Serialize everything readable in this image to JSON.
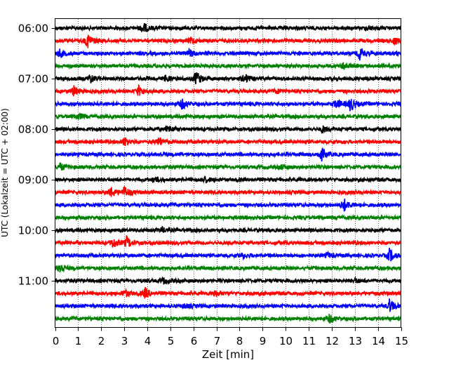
{
  "chart_data": {
    "type": "line",
    "chart_kind": "helicorder seismogram",
    "title": "",
    "xlabel": "Zeit  [min]",
    "ylabel": "UTC (Lokalzeit = UTC + 02:00)",
    "xlim": [
      0,
      15
    ],
    "x_ticks": [
      "0",
      "1",
      "2",
      "3",
      "4",
      "5",
      "6",
      "7",
      "8",
      "9",
      "10",
      "11",
      "12",
      "13",
      "14",
      "15"
    ],
    "y_ticks": [
      "06:00",
      "07:00",
      "08:00",
      "09:00",
      "10:00",
      "11:00"
    ],
    "grid": "vertical dotted lines at every minute",
    "trace_start_time": "06:00",
    "trace_interval_min": 15,
    "color_cycle": [
      "#000000",
      "#ff0000",
      "#0000ff",
      "#008000"
    ],
    "traces": [
      {
        "start": "06:00",
        "color": "#000000",
        "events": [
          {
            "t": 3.8,
            "amp": 0.9
          },
          {
            "t": 13.5,
            "amp": 0.35
          }
        ]
      },
      {
        "start": "06:15",
        "color": "#ff0000",
        "events": [
          {
            "t": 1.4,
            "amp": 1.2
          },
          {
            "t": 5.9,
            "amp": 0.5
          },
          {
            "t": 14.7,
            "amp": 0.6
          }
        ]
      },
      {
        "start": "06:30",
        "color": "#0000ff",
        "events": [
          {
            "t": 0.2,
            "amp": 0.6
          },
          {
            "t": 5.8,
            "amp": 0.6
          },
          {
            "t": 13.2,
            "amp": 1.0
          }
        ]
      },
      {
        "start": "06:45",
        "color": "#008000",
        "events": [
          {
            "t": 12.5,
            "amp": 0.6
          }
        ]
      },
      {
        "start": "07:00",
        "color": "#000000",
        "events": [
          {
            "t": 1.5,
            "amp": 0.7
          },
          {
            "t": 4.8,
            "amp": 0.5
          },
          {
            "t": 6.1,
            "amp": 1.2
          },
          {
            "t": 8.2,
            "amp": 0.8
          }
        ]
      },
      {
        "start": "07:15",
        "color": "#ff0000",
        "events": [
          {
            "t": 0.8,
            "amp": 0.8
          },
          {
            "t": 3.6,
            "amp": 0.8
          },
          {
            "t": 9.6,
            "amp": 0.3
          }
        ]
      },
      {
        "start": "07:30",
        "color": "#0000ff",
        "events": [
          {
            "t": 5.5,
            "amp": 0.8
          },
          {
            "t": 12.2,
            "amp": 0.7
          },
          {
            "t": 12.8,
            "amp": 1.1
          }
        ]
      },
      {
        "start": "07:45",
        "color": "#008000",
        "events": [
          {
            "t": 1.0,
            "amp": 0.5
          }
        ]
      },
      {
        "start": "08:00",
        "color": "#000000",
        "events": [
          {
            "t": 4.9,
            "amp": 0.5
          },
          {
            "t": 11.6,
            "amp": 0.5
          }
        ]
      },
      {
        "start": "08:15",
        "color": "#ff0000",
        "events": [
          {
            "t": 3.0,
            "amp": 0.7
          },
          {
            "t": 4.5,
            "amp": 0.7
          }
        ]
      },
      {
        "start": "08:30",
        "color": "#0000ff",
        "events": [
          {
            "t": 11.5,
            "amp": 1.2
          }
        ]
      },
      {
        "start": "08:45",
        "color": "#008000",
        "events": [
          {
            "t": 0.2,
            "amp": 0.6
          },
          {
            "t": 9.8,
            "amp": 0.3
          }
        ]
      },
      {
        "start": "09:00",
        "color": "#000000",
        "events": [
          {
            "t": 4.3,
            "amp": 0.4
          },
          {
            "t": 6.5,
            "amp": 0.4
          }
        ]
      },
      {
        "start": "09:15",
        "color": "#ff0000",
        "events": [
          {
            "t": 2.4,
            "amp": 0.8
          },
          {
            "t": 3.0,
            "amp": 0.9
          }
        ]
      },
      {
        "start": "09:30",
        "color": "#0000ff",
        "events": [
          {
            "t": 12.5,
            "amp": 1.1
          }
        ]
      },
      {
        "start": "09:45",
        "color": "#008000",
        "events": []
      },
      {
        "start": "10:00",
        "color": "#000000",
        "events": [
          {
            "t": 4.6,
            "amp": 0.4
          }
        ]
      },
      {
        "start": "10:15",
        "color": "#ff0000",
        "events": [
          {
            "t": 2.5,
            "amp": 0.8
          },
          {
            "t": 3.1,
            "amp": 0.9
          }
        ]
      },
      {
        "start": "10:30",
        "color": "#0000ff",
        "events": [
          {
            "t": 8.1,
            "amp": 0.4
          },
          {
            "t": 11.8,
            "amp": 0.4
          },
          {
            "t": 14.5,
            "amp": 1.0
          }
        ]
      },
      {
        "start": "10:45",
        "color": "#008000",
        "events": [
          {
            "t": 0.2,
            "amp": 0.9
          }
        ]
      },
      {
        "start": "11:00",
        "color": "#000000",
        "events": [
          {
            "t": 4.7,
            "amp": 0.4
          },
          {
            "t": 13.0,
            "amp": 0.3
          }
        ]
      },
      {
        "start": "11:15",
        "color": "#ff0000",
        "events": [
          {
            "t": 3.0,
            "amp": 0.6
          },
          {
            "t": 3.9,
            "amp": 0.8
          },
          {
            "t": 6.9,
            "amp": 0.5
          }
        ]
      },
      {
        "start": "11:30",
        "color": "#0000ff",
        "events": [
          {
            "t": 5.6,
            "amp": 0.3
          },
          {
            "t": 14.5,
            "amp": 1.0
          }
        ]
      },
      {
        "start": "11:45",
        "color": "#008000",
        "events": [
          {
            "t": 11.9,
            "amp": 0.6
          }
        ]
      }
    ]
  }
}
